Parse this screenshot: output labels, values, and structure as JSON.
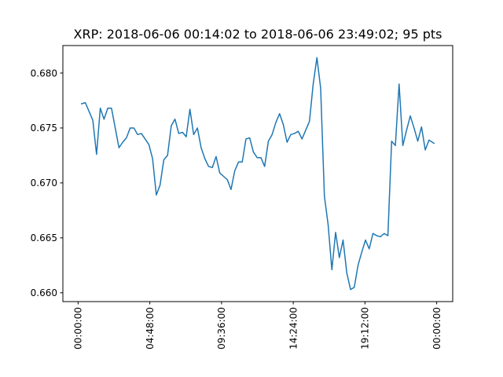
{
  "chart_data": {
    "type": "line",
    "title": "XRP: 2018-06-06 00:14:02 to 2018-06-06 23:49:02; 95 pts",
    "xlabel": "",
    "ylabel": "",
    "x_axis_type": "time",
    "x_tick_labels": [
      "00:00:00",
      "04:48:00",
      "09:36:00",
      "14:24:00",
      "19:12:00",
      "00:00:00"
    ],
    "y_ticks": [
      0.66,
      0.665,
      0.67,
      0.675,
      0.68
    ],
    "y_tick_labels": [
      "0.660",
      "0.665",
      "0.670",
      "0.675",
      "0.680"
    ],
    "xlim": [
      "2018-06-05 22:58:47",
      "2018-06-07 01:04:17"
    ],
    "ylim": [
      0.6592,
      0.6825
    ],
    "grid": false,
    "legend": "none",
    "color": "#1f77b4",
    "series": [
      {
        "x": [
          "00:14:02",
          "00:29:02",
          "00:44:02",
          "00:59:02",
          "01:14:02",
          "01:29:02",
          "01:44:02",
          "01:59:02",
          "02:14:02",
          "02:29:02",
          "02:44:02",
          "02:59:02",
          "03:14:02",
          "03:29:02",
          "03:44:02",
          "03:59:02",
          "04:14:02",
          "04:29:02",
          "04:44:02",
          "04:59:02",
          "05:14:02",
          "05:29:02",
          "05:44:02",
          "05:59:02",
          "06:14:02",
          "06:29:02",
          "06:44:02",
          "06:59:02",
          "07:14:02",
          "07:29:02",
          "07:44:02",
          "07:59:02",
          "08:14:02",
          "08:29:02",
          "08:44:02",
          "08:59:02",
          "09:14:02",
          "09:29:02",
          "09:44:02",
          "09:59:02",
          "10:14:02",
          "10:29:02",
          "10:44:02",
          "10:59:02",
          "11:14:02",
          "11:29:02",
          "11:44:02",
          "11:59:02",
          "12:14:02",
          "12:29:02",
          "12:44:02",
          "12:59:02",
          "13:14:02",
          "13:29:02",
          "13:44:02",
          "13:59:02",
          "14:14:02",
          "14:29:02",
          "14:44:02",
          "14:59:02",
          "15:14:02",
          "15:29:02",
          "15:44:02",
          "15:59:02",
          "16:14:02",
          "16:29:02",
          "16:44:02",
          "16:59:02",
          "17:14:02",
          "17:29:02",
          "17:44:02",
          "17:59:02",
          "18:14:02",
          "18:29:02",
          "18:44:02",
          "18:59:02",
          "19:14:02",
          "19:29:02",
          "19:44:02",
          "19:59:02",
          "20:14:02",
          "20:29:02",
          "20:44:02",
          "20:59:02",
          "21:14:02",
          "21:29:02",
          "21:44:02",
          "21:59:02",
          "22:14:02",
          "22:29:02",
          "22:44:02",
          "22:59:02",
          "23:14:02",
          "23:29:02",
          "23:49:02"
        ],
        "values": [
          0.6772,
          0.6773,
          0.6765,
          0.6757,
          0.6726,
          0.6768,
          0.6758,
          0.6768,
          0.6768,
          0.675,
          0.6732,
          0.6737,
          0.6741,
          0.675,
          0.675,
          0.6744,
          0.6745,
          0.674,
          0.6735,
          0.6722,
          0.6689,
          0.6698,
          0.6721,
          0.6725,
          0.6752,
          0.6758,
          0.6745,
          0.6746,
          0.6742,
          0.6767,
          0.6744,
          0.675,
          0.6732,
          0.6722,
          0.6715,
          0.6714,
          0.6724,
          0.6709,
          0.6706,
          0.6703,
          0.6694,
          0.6711,
          0.6719,
          0.6719,
          0.674,
          0.6741,
          0.6728,
          0.6723,
          0.6723,
          0.6715,
          0.6738,
          0.6744,
          0.6755,
          0.6763,
          0.6753,
          0.6737,
          0.6744,
          0.6745,
          0.6747,
          0.674,
          0.6748,
          0.6756,
          0.679,
          0.6814,
          0.6786,
          0.6688,
          0.6662,
          0.6621,
          0.6655,
          0.6632,
          0.6648,
          0.6618,
          0.6603,
          0.6605,
          0.6625,
          0.6637,
          0.6648,
          0.664,
          0.6654,
          0.6652,
          0.6651,
          0.6654,
          0.6652,
          0.6738,
          0.6734,
          0.679,
          0.6734,
          0.6748,
          0.6761,
          0.675,
          0.6738,
          0.6751,
          0.673,
          0.6739,
          0.6736
        ]
      }
    ]
  }
}
